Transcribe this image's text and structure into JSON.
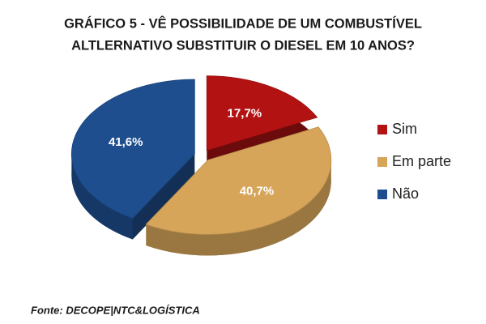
{
  "chart_data": {
    "type": "pie",
    "title": [
      "GRÁFICO 5 - VÊ POSSIBILIDADE DE UM COMBUSTÍVEL",
      "ALTLERNATIVO SUBSTITUIR O DIESEL EM 10 ANOS?"
    ],
    "categories": [
      "Sim",
      "Em parte",
      "Não"
    ],
    "values": [
      17.7,
      40.7,
      41.6
    ],
    "value_labels": [
      "17,7%",
      "40,7%",
      "41,6%"
    ],
    "colors": [
      "#b31212",
      "#d6a559",
      "#1f4e8e"
    ],
    "legend": "right",
    "source": "Fonte: DECOPE|NTC&LOGÍSTICA"
  }
}
